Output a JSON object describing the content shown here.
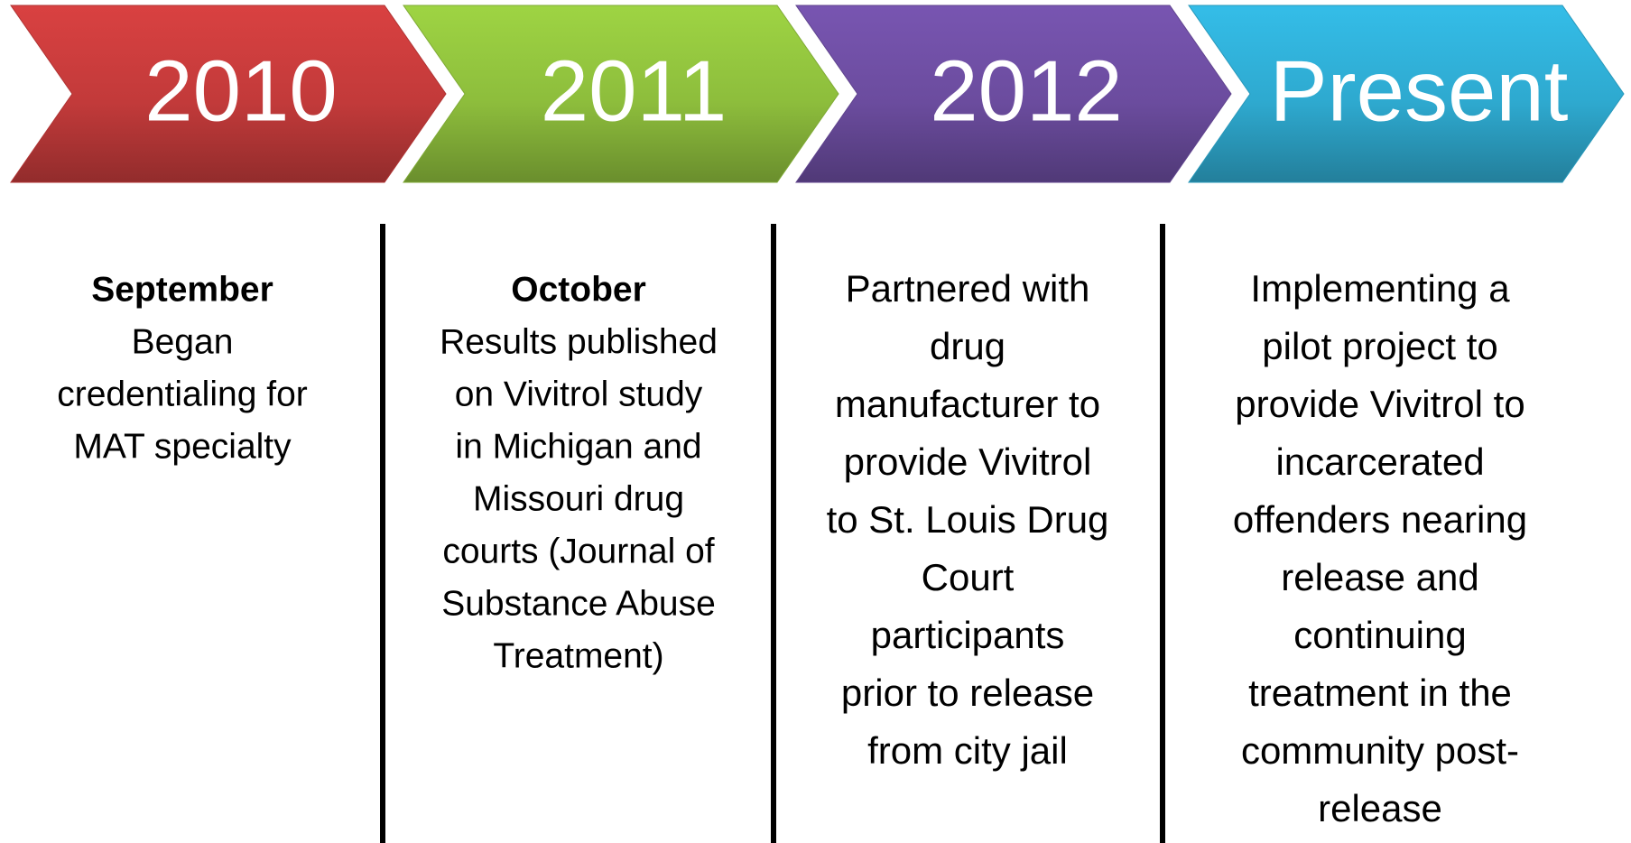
{
  "columns": [
    {
      "year": "2010",
      "color": "#c23a3a",
      "heading": "September",
      "lines": [
        "Began",
        "credentialing for",
        "MAT specialty"
      ]
    },
    {
      "year": "2011",
      "color": "#8dbd3c",
      "heading": "October",
      "lines": [
        "Results published",
        "on Vivitrol study",
        "in Michigan and",
        "Missouri drug",
        "courts (Journal of",
        "Substance Abuse",
        "Treatment)"
      ]
    },
    {
      "year": "2012",
      "color": "#6b4c9e",
      "lines": [
        "Partnered with",
        "drug",
        "manufacturer to",
        "provide Vivitrol",
        "to St. Louis Drug",
        "Court",
        "participants",
        "prior to release",
        "from city jail"
      ]
    },
    {
      "year": "Present",
      "color": "#2ea9cf",
      "lines": [
        "Implementing a",
        "pilot project to",
        "provide Vivitrol to",
        "incarcerated",
        "offenders nearing",
        "release and",
        "continuing",
        "treatment in the",
        "community post-",
        "release"
      ]
    }
  ]
}
